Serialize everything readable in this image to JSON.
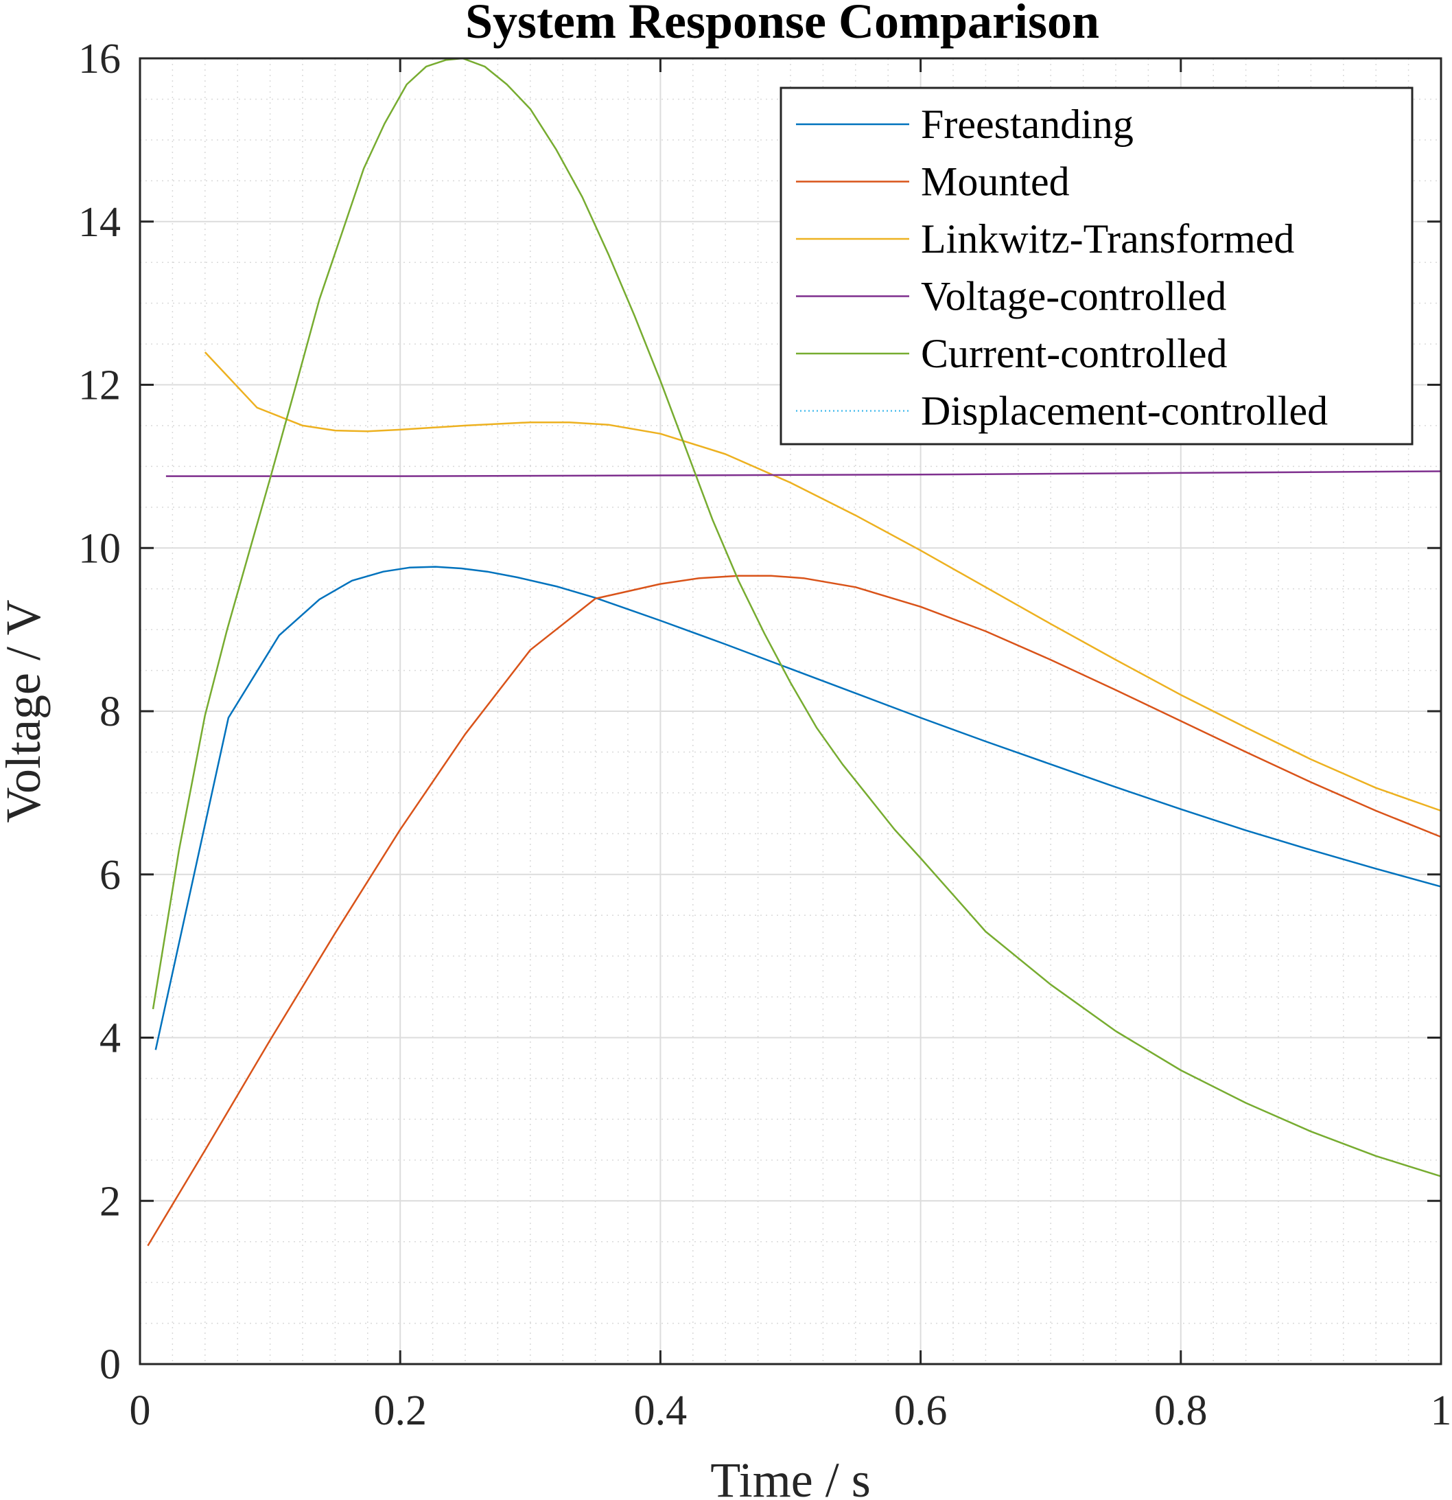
{
  "chart_data": {
    "type": "line",
    "title": "System Response Comparison",
    "xlabel": "Time / s",
    "ylabel": "Voltage / V",
    "xlim": [
      0,
      1
    ],
    "ylim": [
      0,
      16
    ],
    "xticks": [
      0,
      0.2,
      0.4,
      0.6,
      0.8,
      1
    ],
    "xtick_labels": [
      "0",
      "0.2",
      "0.4",
      "0.6",
      "0.8",
      "1"
    ],
    "yticks": [
      0,
      2,
      4,
      6,
      8,
      10,
      12,
      14,
      16
    ],
    "ytick_labels": [
      "0",
      "2",
      "4",
      "6",
      "8",
      "10",
      "12",
      "14",
      "16"
    ],
    "grid": true,
    "minor_grid": true,
    "legend_position": "top-right",
    "series": [
      {
        "name": "Freestanding",
        "color": "#0072BD",
        "style": "solid",
        "x": [
          0.012,
          0.068,
          0.107,
          0.138,
          0.163,
          0.187,
          0.207,
          0.227,
          0.247,
          0.267,
          0.29,
          0.32,
          0.35,
          0.4,
          0.45,
          0.5,
          0.55,
          0.6,
          0.65,
          0.7,
          0.75,
          0.8,
          0.85,
          0.9,
          0.95,
          1.0
        ],
        "y": [
          3.85,
          7.92,
          8.93,
          9.37,
          9.6,
          9.71,
          9.76,
          9.77,
          9.75,
          9.71,
          9.64,
          9.53,
          9.39,
          9.11,
          8.82,
          8.52,
          8.22,
          7.92,
          7.63,
          7.35,
          7.07,
          6.8,
          6.54,
          6.3,
          6.07,
          5.85
        ]
      },
      {
        "name": "Mounted",
        "color": "#D95319",
        "style": "solid",
        "x": [
          0.006,
          0.05,
          0.1,
          0.15,
          0.2,
          0.25,
          0.3,
          0.35,
          0.4,
          0.43,
          0.46,
          0.485,
          0.51,
          0.55,
          0.6,
          0.65,
          0.7,
          0.75,
          0.8,
          0.85,
          0.9,
          0.95,
          1.0
        ],
        "y": [
          1.45,
          2.62,
          3.97,
          5.28,
          6.55,
          7.72,
          8.75,
          9.38,
          9.56,
          9.63,
          9.66,
          9.66,
          9.63,
          9.52,
          9.28,
          8.98,
          8.63,
          8.26,
          7.88,
          7.5,
          7.13,
          6.78,
          6.46
        ]
      },
      {
        "name": "Linkwitz-Transformed",
        "color": "#EDB120",
        "style": "solid",
        "x": [
          0.05,
          0.09,
          0.125,
          0.15,
          0.175,
          0.2,
          0.25,
          0.3,
          0.33,
          0.36,
          0.4,
          0.45,
          0.5,
          0.55,
          0.6,
          0.65,
          0.7,
          0.75,
          0.8,
          0.85,
          0.9,
          0.95,
          1.0
        ],
        "y": [
          12.4,
          11.72,
          11.5,
          11.44,
          11.43,
          11.45,
          11.5,
          11.54,
          11.54,
          11.51,
          11.4,
          11.15,
          10.8,
          10.4,
          9.97,
          9.52,
          9.07,
          8.63,
          8.2,
          7.8,
          7.41,
          7.06,
          6.78
        ]
      },
      {
        "name": "Voltage-controlled",
        "color": "#7E2F8E",
        "style": "solid",
        "x": [
          0.02,
          0.2,
          0.4,
          0.6,
          0.8,
          1.0
        ],
        "y": [
          10.88,
          10.88,
          10.89,
          10.9,
          10.92,
          10.94
        ]
      },
      {
        "name": "Current-controlled",
        "color": "#77AC30",
        "style": "solid",
        "x": [
          0.01,
          0.03,
          0.05,
          0.067,
          0.083,
          0.1,
          0.12,
          0.138,
          0.155,
          0.172,
          0.188,
          0.205,
          0.22,
          0.235,
          0.248,
          0.265,
          0.282,
          0.3,
          0.32,
          0.34,
          0.36,
          0.38,
          0.4,
          0.42,
          0.44,
          0.46,
          0.48,
          0.5,
          0.52,
          0.54,
          0.56,
          0.58,
          0.6,
          0.65,
          0.7,
          0.75,
          0.8,
          0.85,
          0.9,
          0.95,
          1.0
        ],
        "y": [
          4.35,
          6.3,
          7.95,
          9.0,
          9.9,
          10.85,
          12.0,
          13.05,
          13.85,
          14.65,
          15.2,
          15.68,
          15.9,
          15.98,
          16.0,
          15.9,
          15.68,
          15.38,
          14.88,
          14.3,
          13.6,
          12.85,
          12.05,
          11.2,
          10.35,
          9.6,
          8.95,
          8.35,
          7.8,
          7.35,
          6.95,
          6.55,
          6.2,
          5.3,
          4.65,
          4.08,
          3.6,
          3.2,
          2.85,
          2.55,
          2.3
        ]
      },
      {
        "name": "Displacement-controlled",
        "color": "#4DBEEE",
        "style": "dotted",
        "x": [],
        "y": []
      }
    ]
  }
}
